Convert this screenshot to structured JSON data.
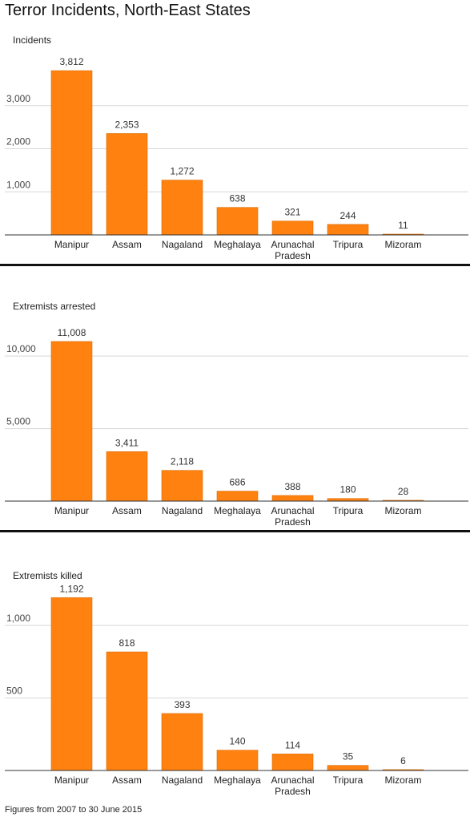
{
  "title": "Terror Incidents, North-East States",
  "footnote": "Figures from 2007 to 30 June 2015",
  "colors": {
    "bar": "#ff8110",
    "bar_edge": "#d96a00",
    "grid": "#d8d8d8",
    "axis": "#333333",
    "divider": "#111111"
  },
  "chart_data": [
    {
      "type": "bar",
      "title": "Incidents",
      "categories": [
        "Manipur",
        "Assam",
        "Nagaland",
        "Meghalaya",
        "Arunachal Pradesh",
        "Tripura",
        "Mizoram"
      ],
      "values": [
        3812,
        2353,
        1272,
        638,
        321,
        244,
        11
      ],
      "value_labels": [
        "3,812",
        "2,353",
        "1,272",
        "638",
        "321",
        "244",
        "11"
      ],
      "ylim": [
        0,
        4000
      ],
      "yticks": [
        1000,
        2000,
        3000
      ],
      "ytick_labels": [
        "1,000",
        "2,000",
        "3,000"
      ],
      "grid": true
    },
    {
      "type": "bar",
      "title": "Extremists arrested",
      "categories": [
        "Manipur",
        "Assam",
        "Nagaland",
        "Meghalaya",
        "Arunachal Pradesh",
        "Tripura",
        "Mizoram"
      ],
      "values": [
        11008,
        3411,
        2118,
        686,
        388,
        180,
        28
      ],
      "value_labels": [
        "11,008",
        "3,411",
        "2,118",
        "686",
        "388",
        "180",
        "28"
      ],
      "ylim": [
        0,
        12000
      ],
      "yticks": [
        5000,
        10000
      ],
      "ytick_labels": [
        "5,000",
        "10,000"
      ],
      "grid": true
    },
    {
      "type": "bar",
      "title": "Extremists killed",
      "categories": [
        "Manipur",
        "Assam",
        "Nagaland",
        "Meghalaya",
        "Arunachal Pradesh",
        "Tripura",
        "Mizoram"
      ],
      "values": [
        1192,
        818,
        393,
        140,
        114,
        35,
        6
      ],
      "value_labels": [
        "1,192",
        "818",
        "393",
        "140",
        "114",
        "35",
        "6"
      ],
      "ylim": [
        0,
        1200
      ],
      "yticks": [
        500,
        1000
      ],
      "ytick_labels": [
        "500",
        "1,000"
      ],
      "grid": true
    }
  ]
}
